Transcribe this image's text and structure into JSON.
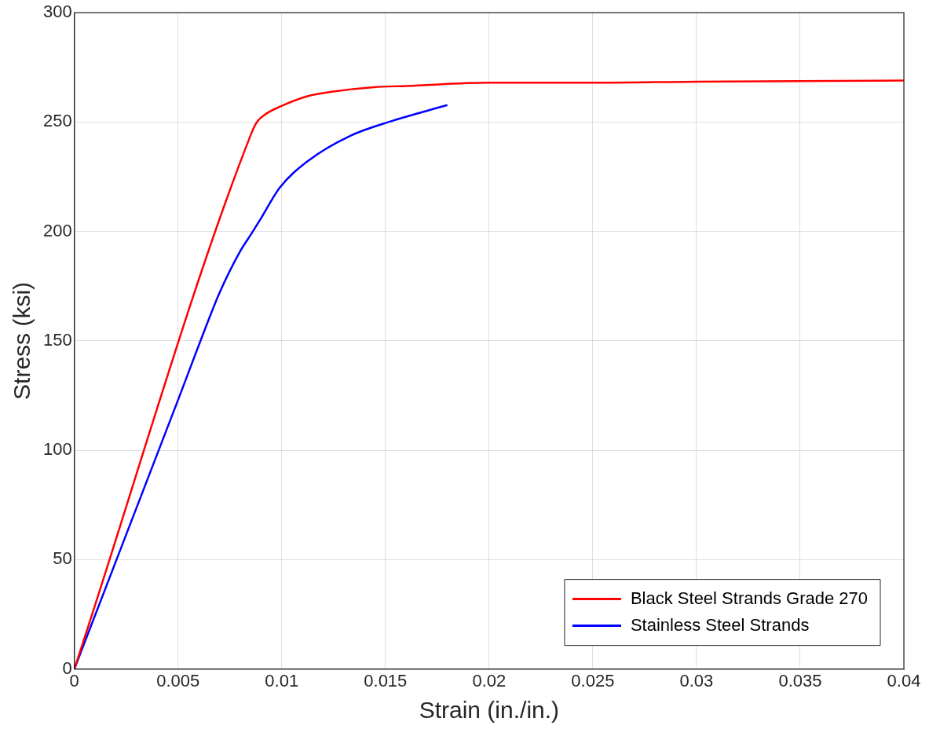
{
  "chart_data": {
    "type": "line",
    "xlabel": "Strain (in./in.)",
    "ylabel": "Stress (ksi)",
    "xlim": [
      0,
      0.04
    ],
    "xticks": [
      0,
      0.005,
      0.01,
      0.015,
      0.02,
      0.025,
      0.03,
      0.035,
      0.04
    ],
    "ylim": [
      0,
      300
    ],
    "yticks": [
      0,
      50,
      100,
      150,
      200,
      250,
      300
    ],
    "grid": true,
    "legend": "bottom right",
    "marker": "none",
    "line_style": "solid",
    "series": [
      {
        "name": "Black Steel Strands Grade 270",
        "color": "#ff0000",
        "x": [
          0,
          0.00854,
          0.0088,
          0.0092,
          0.0099,
          0.0113,
          0.0125,
          0.01445,
          0.016,
          0.02,
          0.025,
          0.03,
          0.04
        ],
        "values": [
          0,
          245,
          250,
          253.5,
          257,
          262,
          264,
          266,
          266.5,
          268,
          268,
          268.5,
          269
        ]
      },
      {
        "name": "Stainless Steel Strands",
        "color": "#0000ff",
        "x": [
          0,
          0.005,
          0.00657,
          0.007,
          0.008,
          0.00854,
          0.009,
          0.0099,
          0.0113,
          0.01327,
          0.01524,
          0.01795
        ],
        "values": [
          0,
          123,
          162,
          172,
          191,
          199,
          206,
          220,
          232.5,
          243.6,
          250.3,
          257.7
        ]
      }
    ]
  }
}
